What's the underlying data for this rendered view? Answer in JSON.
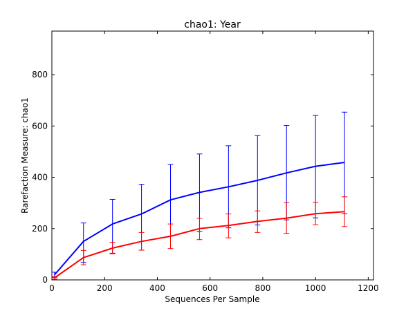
{
  "chart_data": {
    "type": "line",
    "title": "chao1: Year",
    "xlabel": "Sequences Per Sample",
    "ylabel": "Rarefaction Measure: chao1",
    "xlim": [
      0,
      1220
    ],
    "ylim": [
      0,
      970
    ],
    "xticks": [
      "0",
      "200",
      "400",
      "600",
      "800",
      "1000",
      "1200"
    ],
    "yticks": [
      "0",
      "200",
      "400",
      "600",
      "800"
    ],
    "grid": false,
    "x": [
      10,
      120,
      230,
      340,
      450,
      560,
      670,
      780,
      890,
      1000,
      1110
    ],
    "series": [
      {
        "color": "#0000ff",
        "values": [
          20,
          150,
          218,
          257,
          312,
          341,
          363,
          388,
          417,
          443,
          458
        ],
        "yerr_low": [
          10,
          82,
          114,
          141,
          141,
          152,
          160,
          174,
          183,
          201,
          200
        ],
        "yerr_high": [
          10,
          72,
          96,
          116,
          138,
          150,
          160,
          174,
          185,
          198,
          196
        ]
      },
      {
        "color": "#ff0000",
        "values": [
          8,
          87,
          124,
          150,
          170,
          200,
          212,
          228,
          241,
          258,
          266
        ],
        "yerr_low": [
          5,
          28,
          22,
          34,
          48,
          43,
          48,
          43,
          59,
          43,
          58
        ],
        "yerr_high": [
          5,
          28,
          23,
          35,
          48,
          40,
          45,
          41,
          60,
          45,
          58
        ]
      }
    ]
  }
}
